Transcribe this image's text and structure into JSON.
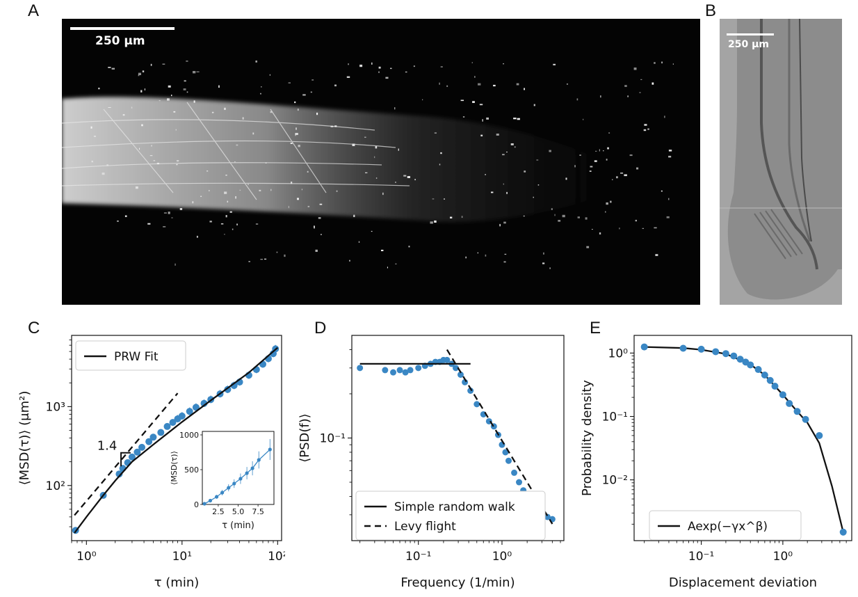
{
  "figure": {
    "panel_letters": [
      "A",
      "B",
      "C",
      "D",
      "E"
    ],
    "scale_bars": {
      "A": "250 μm",
      "B": "250 μm"
    }
  },
  "chart_data": [
    {
      "panel": "C",
      "type": "scatter",
      "xlabel": "τ (min)",
      "ylabel": "⟨MSD(τ)⟩ (μm²)",
      "xscale": "log",
      "yscale": "log",
      "xlim": [
        0.7,
        110
      ],
      "ylim": [
        20,
        8000
      ],
      "xticks": [
        "10⁰",
        "10¹",
        "10²"
      ],
      "yticks": [
        "10²",
        "10³"
      ],
      "legend": {
        "position": "top-left",
        "entries": [
          "PRW Fit"
        ]
      },
      "annotation": "1.4",
      "series": [
        {
          "x": [
            0.77,
            1.5,
            2.2,
            2.4,
            2.7,
            3.0,
            3.4,
            3.8,
            4.5,
            5.0,
            6.0,
            7.0,
            8.0,
            9.0,
            10,
            12,
            14,
            17,
            20,
            25,
            30,
            35,
            40,
            50,
            60,
            70,
            80,
            90,
            95
          ],
          "y": [
            27,
            75,
            140,
            165,
            195,
            230,
            265,
            305,
            360,
            410,
            470,
            560,
            630,
            700,
            760,
            870,
            980,
            1100,
            1230,
            1450,
            1650,
            1850,
            2050,
            2500,
            2950,
            3450,
            4050,
            4700,
            5400
          ]
        }
      ],
      "fit_line": {
        "name": "PRW Fit",
        "x": [
          0.75,
          1.0,
          1.5,
          2,
          3,
          5,
          10,
          20,
          50,
          100
        ],
        "y": [
          25,
          40,
          75,
          115,
          200,
          330,
          640,
          1200,
          2700,
          5600
        ]
      },
      "slope_line": {
        "x": [
          0.75,
          9.0
        ],
        "y": [
          42,
          1480
        ]
      },
      "inset": {
        "type": "line",
        "xlabel": "τ (min)",
        "ylabel": "⟨MSD(τ)⟩",
        "xlim": [
          0.5,
          9.5
        ],
        "ylim": [
          0,
          1050
        ],
        "xticks": [
          "2.5",
          "5.0",
          "7.5"
        ],
        "yticks": [
          "0",
          "500",
          "1000"
        ],
        "x": [
          0.77,
          1.5,
          2.3,
          3.0,
          3.8,
          4.5,
          5.3,
          6.1,
          6.8,
          7.6,
          9.0
        ],
        "y": [
          10,
          55,
          110,
          170,
          240,
          300,
          370,
          450,
          520,
          640,
          790
        ]
      }
    },
    {
      "panel": "D",
      "type": "scatter",
      "xlabel": "Frequency (1/min)",
      "ylabel": "⟨PSD(f)⟩",
      "xscale": "log",
      "yscale": "log",
      "xlim": [
        0.016,
        5.5
      ],
      "ylim": [
        0.02,
        0.5
      ],
      "xticks": [
        "10⁻¹",
        "10⁰"
      ],
      "yticks": [
        "10⁻¹"
      ],
      "legend": {
        "position": "bottom-left",
        "entries": [
          "Simple random walk",
          "Levy flight"
        ]
      },
      "series": [
        {
          "x": [
            0.02,
            0.04,
            0.05,
            0.06,
            0.07,
            0.08,
            0.1,
            0.12,
            0.14,
            0.16,
            0.18,
            0.2,
            0.22,
            0.25,
            0.28,
            0.32,
            0.36,
            0.42,
            0.5,
            0.6,
            0.7,
            0.8,
            0.9,
            1.0,
            1.1,
            1.2,
            1.4,
            1.6,
            1.8,
            2.0,
            2.3,
            2.6,
            3.0,
            3.5,
            4.0
          ],
          "y": [
            0.3,
            0.29,
            0.28,
            0.29,
            0.28,
            0.29,
            0.3,
            0.31,
            0.32,
            0.33,
            0.33,
            0.34,
            0.34,
            0.32,
            0.3,
            0.27,
            0.24,
            0.21,
            0.17,
            0.145,
            0.13,
            0.12,
            0.105,
            0.09,
            0.08,
            0.07,
            0.058,
            0.05,
            0.044,
            0.04,
            0.036,
            0.033,
            0.031,
            0.029,
            0.028
          ]
        }
      ],
      "fit_lines": [
        {
          "name": "Simple random walk",
          "x": [
            0.02,
            0.42
          ],
          "y": [
            0.32,
            0.32
          ]
        },
        {
          "name": "Levy flight",
          "x": [
            0.22,
            4.0
          ],
          "y": [
            0.4,
            0.026
          ]
        }
      ]
    },
    {
      "panel": "E",
      "type": "scatter",
      "xlabel": "Displacement deviation",
      "ylabel": "Probability density",
      "xscale": "log",
      "yscale": "log",
      "xlim": [
        0.015,
        7.0
      ],
      "ylim": [
        0.0011,
        1.9
      ],
      "xticks": [
        "10⁻¹",
        "10⁰"
      ],
      "yticks": [
        "10⁰",
        "10⁻¹",
        "10⁻²"
      ],
      "legend": {
        "position": "bottom-left",
        "entries": [
          "Aexp(−γx^β)"
        ]
      },
      "series": [
        {
          "x": [
            0.02,
            0.06,
            0.1,
            0.15,
            0.2,
            0.25,
            0.3,
            0.35,
            0.4,
            0.5,
            0.6,
            0.7,
            0.8,
            1.0,
            1.2,
            1.5,
            1.9,
            2.8,
            5.5
          ],
          "y": [
            1.25,
            1.19,
            1.15,
            1.05,
            0.98,
            0.9,
            0.8,
            0.72,
            0.65,
            0.55,
            0.45,
            0.37,
            0.3,
            0.22,
            0.16,
            0.12,
            0.09,
            0.05,
            0.0015
          ]
        }
      ],
      "fit_line": {
        "name": "Aexp(−γx^β)",
        "x": [
          0.02,
          0.06,
          0.1,
          0.2,
          0.4,
          0.6,
          1.0,
          1.5,
          2.0,
          2.8,
          4.0,
          5.5
        ],
        "y": [
          1.25,
          1.2,
          1.13,
          0.97,
          0.66,
          0.45,
          0.22,
          0.12,
          0.08,
          0.038,
          0.008,
          0.0015
        ]
      }
    }
  ]
}
